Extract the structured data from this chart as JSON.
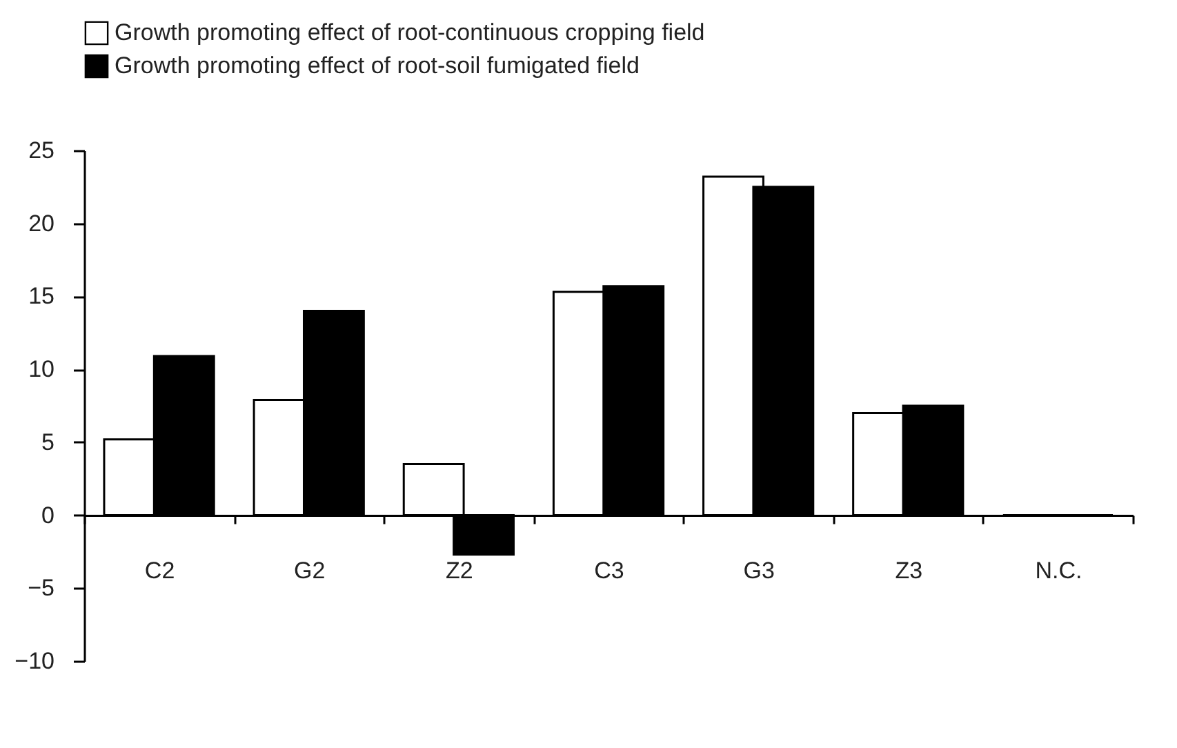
{
  "chart_data": {
    "type": "bar",
    "categories": [
      "C2",
      "G2",
      "Z2",
      "C3",
      "G3",
      "Z3",
      "N.C."
    ],
    "series": [
      {
        "name": "Growth promoting effect of root-continuous cropping field",
        "color": "#ffffff",
        "values": [
          5.2,
          7.9,
          3.5,
          15.3,
          23.2,
          7.0,
          0
        ]
      },
      {
        "name": "Growth promoting effect of root-soil fumigated field",
        "color": "#000000",
        "values": [
          10.9,
          14.0,
          -2.7,
          15.7,
          22.5,
          7.5,
          0
        ]
      }
    ],
    "ylim": [
      -10,
      25
    ],
    "yticks": [
      -10,
      -5,
      0,
      5,
      10,
      15,
      20,
      25
    ],
    "grid": false,
    "legend": "top left"
  }
}
